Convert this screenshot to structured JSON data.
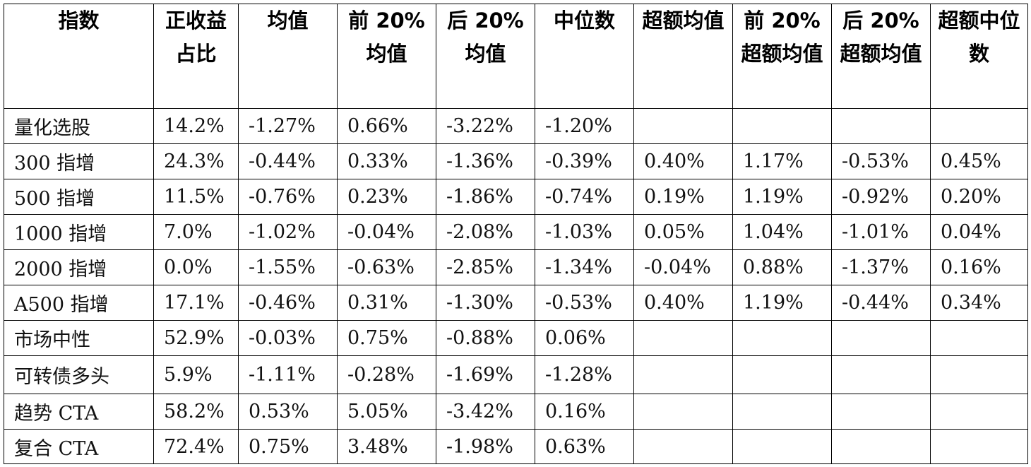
{
  "table": {
    "header": [
      "指数",
      "正收益占比",
      "均值",
      "前 20%均值",
      "后 20%均值",
      "中位数",
      "超额均值",
      "前 20%超额均值",
      "后 20%超额均值",
      "超额中位数"
    ],
    "rows": [
      [
        "量化选股",
        "14.2%",
        "-1.27%",
        "0.66%",
        "-3.22%",
        "-1.20%"
      ],
      [
        "300 指增",
        "24.3%",
        "-0.44%",
        "0.33%",
        "-1.36%",
        "-0.39%",
        "0.40%",
        "1.17%",
        "-0.53%",
        "0.45%"
      ],
      [
        "500 指增",
        "11.5%",
        "-0.76%",
        "0.23%",
        "-1.86%",
        "-0.74%",
        "0.19%",
        "1.19%",
        "-0.92%",
        "0.20%"
      ],
      [
        "1000 指增",
        "7.0%",
        "-1.02%",
        "-0.04%",
        "-2.08%",
        "-1.03%",
        "0.05%",
        "1.04%",
        "-1.01%",
        "0.04%"
      ],
      [
        "2000 指增",
        "0.0%",
        "-1.55%",
        "-0.63%",
        "-2.85%",
        "-1.34%",
        "-0.04%",
        "0.88%",
        "-1.37%",
        "0.16%"
      ],
      [
        "A500 指增",
        "17.1%",
        "-0.46%",
        "0.31%",
        "-1.30%",
        "-0.53%",
        "0.40%",
        "1.19%",
        "-0.44%",
        "0.34%"
      ],
      [
        "市场中性",
        "52.9%",
        "-0.03%",
        "0.75%",
        "-0.88%",
        "0.06%"
      ],
      [
        "可转债多头",
        "5.9%",
        "-1.11%",
        "-0.28%",
        "-1.69%",
        "-1.28%"
      ],
      [
        "趋势 CTA",
        "58.2%",
        "0.53%",
        "5.05%",
        "-3.42%",
        "0.16%"
      ],
      [
        "复合 CTA",
        "72.4%",
        "0.75%",
        "3.48%",
        "-1.98%",
        "0.63%"
      ]
    ]
  }
}
